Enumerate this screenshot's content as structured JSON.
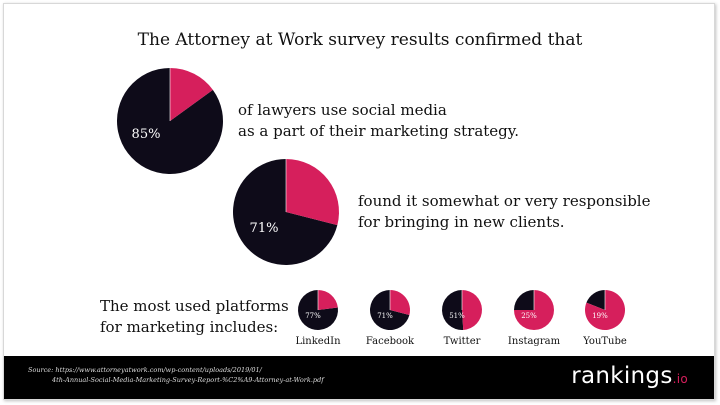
{
  "colors": {
    "primary": "#0e0b19",
    "accent": "#d61f5c",
    "footer_bg": "#000000"
  },
  "title": "The Attorney at Work survey results confirmed that",
  "stats": [
    {
      "label": "85%",
      "line1": "of lawyers use social media",
      "line2": "as a part of their marketing strategy."
    },
    {
      "label": "71%",
      "line1": "found it somewhat or very responsible",
      "line2": "for bringing in new clients."
    }
  ],
  "platforms_label": {
    "line1": "The most used platforms",
    "line2": "for marketing includes:"
  },
  "chart_data": [
    {
      "type": "pie",
      "values": [
        85,
        15
      ],
      "label": "85%"
    },
    {
      "type": "pie",
      "values": [
        71,
        29
      ],
      "label": "71%"
    },
    {
      "type": "pie",
      "categories": [
        "LinkedIn",
        "Facebook",
        "Twitter",
        "Instagram",
        "YouTube"
      ],
      "values": [
        77,
        71,
        51,
        25,
        19
      ],
      "labels": [
        "77%",
        "71%",
        "51%",
        "25%",
        "19%"
      ]
    }
  ],
  "footer": {
    "source_line1": "Source: https://www.attorneyatwork.com/wp-content/uploads/2019/01/",
    "source_line2": "4th-Annual-Social-Media-Marketing-Survey-Report-%C2%A9-Attorney-at-Work.pdf",
    "logo_main": "rankings",
    "logo_suffix": ".io"
  }
}
